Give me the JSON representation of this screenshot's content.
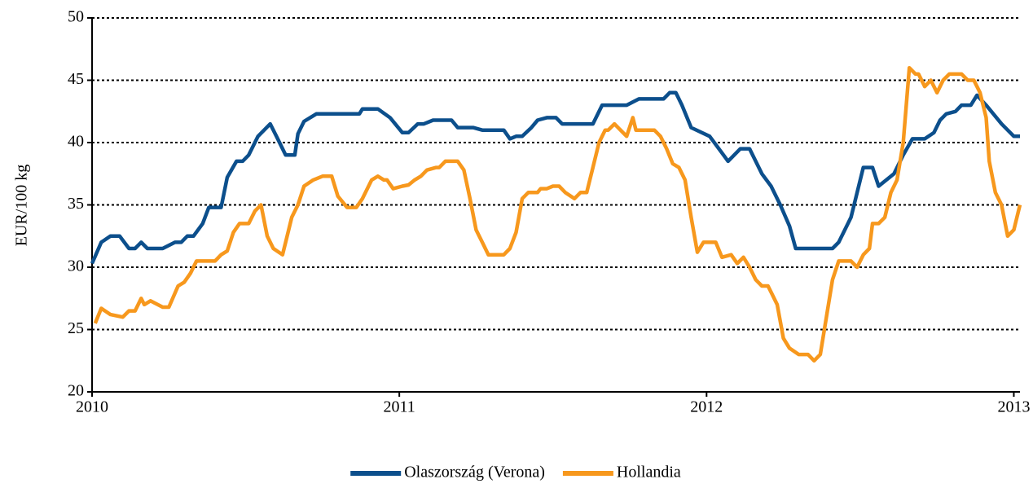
{
  "chart_data": {
    "type": "line",
    "ylabel": "EUR/100 kg",
    "xlim": [
      2010,
      2013.02
    ],
    "xticks": [
      2010,
      2011,
      2012,
      2013
    ],
    "ylim": [
      20,
      50
    ],
    "yticks": [
      20,
      25,
      30,
      35,
      40,
      45,
      50
    ],
    "grid": true,
    "legend": "bottom",
    "series": [
      {
        "name": "Olaszország (Verona)",
        "color": "#0c4f8c",
        "x": [
          2010.0,
          2010.03,
          2010.06,
          2010.09,
          2010.12,
          2010.14,
          2010.16,
          2010.18,
          2010.23,
          2010.27,
          2010.29,
          2010.31,
          2010.33,
          2010.36,
          2010.38,
          2010.42,
          2010.44,
          2010.47,
          2010.49,
          2010.51,
          2010.54,
          2010.58,
          2010.6,
          2010.63,
          2010.66,
          2010.67,
          2010.69,
          2010.73,
          2010.87,
          2010.88,
          2010.93,
          2010.97,
          2011.01,
          2011.03,
          2011.06,
          2011.08,
          2011.11,
          2011.17,
          2011.19,
          2011.24,
          2011.27,
          2011.34,
          2011.36,
          2011.38,
          2011.4,
          2011.43,
          2011.45,
          2011.48,
          2011.51,
          2011.53,
          2011.63,
          2011.66,
          2011.74,
          2011.78,
          2011.86,
          2011.88,
          2011.9,
          2011.92,
          2011.95,
          2012.01,
          2012.04,
          2012.07,
          2012.11,
          2012.14,
          2012.18,
          2012.21,
          2012.24,
          2012.27,
          2012.29,
          2012.41,
          2012.43,
          2012.47,
          2012.51,
          2012.54,
          2012.56,
          2012.61,
          2012.64,
          2012.67,
          2012.71,
          2012.74,
          2012.76,
          2012.78,
          2012.81,
          2012.83,
          2012.86,
          2012.88,
          2012.91,
          2012.96,
          2013.0,
          2013.02
        ],
        "values": [
          30.3,
          32,
          32.5,
          32.5,
          31.5,
          31.5,
          32,
          31.5,
          31.5,
          32,
          32,
          32.5,
          32.5,
          33.5,
          34.8,
          34.8,
          37.2,
          38.5,
          38.5,
          39,
          40.5,
          41.5,
          40.5,
          39,
          39,
          40.7,
          41.7,
          42.3,
          42.3,
          42.7,
          42.7,
          42,
          40.8,
          40.8,
          41.5,
          41.5,
          41.8,
          41.8,
          41.2,
          41.2,
          41,
          41,
          40.3,
          40.5,
          40.5,
          41.2,
          41.8,
          42,
          42,
          41.5,
          41.5,
          43,
          43,
          43.5,
          43.5,
          44,
          44,
          43,
          41.2,
          40.5,
          39.5,
          38.5,
          39.5,
          39.5,
          37.5,
          36.5,
          35,
          33.3,
          31.5,
          31.5,
          32,
          34,
          38,
          38,
          36.5,
          37.5,
          39,
          40.3,
          40.3,
          40.8,
          41.8,
          42.3,
          42.5,
          43,
          43,
          43.8,
          43,
          41.5,
          40.5,
          40.5
        ]
      },
      {
        "name": "Hollandia",
        "color": "#f7981d",
        "x": [
          2010.01,
          2010.03,
          2010.06,
          2010.1,
          2010.12,
          2010.14,
          2010.16,
          2010.17,
          2010.19,
          2010.23,
          2010.25,
          2010.28,
          2010.3,
          2010.32,
          2010.34,
          2010.4,
          2010.42,
          2010.44,
          2010.46,
          2010.48,
          2010.51,
          2010.53,
          2010.55,
          2010.57,
          2010.59,
          2010.62,
          2010.63,
          2010.65,
          2010.67,
          2010.69,
          2010.72,
          2010.75,
          2010.78,
          2010.8,
          2010.83,
          2010.86,
          2010.88,
          2010.91,
          2010.93,
          2010.95,
          2010.96,
          2010.98,
          2011.01,
          2011.03,
          2011.05,
          2011.07,
          2011.09,
          2011.12,
          2011.13,
          2011.15,
          2011.19,
          2011.21,
          2011.23,
          2011.25,
          2011.27,
          2011.29,
          2011.34,
          2011.36,
          2011.38,
          2011.4,
          2011.42,
          2011.45,
          2011.46,
          2011.48,
          2011.5,
          2011.52,
          2011.54,
          2011.57,
          2011.59,
          2011.61,
          2011.63,
          2011.65,
          2011.67,
          2011.68,
          2011.7,
          2011.74,
          2011.76,
          2011.77,
          2011.83,
          2011.85,
          2011.87,
          2011.89,
          2011.91,
          2011.93,
          2011.95,
          2011.97,
          2011.99,
          2012.03,
          2012.05,
          2012.08,
          2012.1,
          2012.12,
          2012.14,
          2012.16,
          2012.18,
          2012.2,
          2012.21,
          2012.23,
          2012.25,
          2012.27,
          2012.3,
          2012.33,
          2012.35,
          2012.37,
          2012.39,
          2012.41,
          2012.43,
          2012.47,
          2012.49,
          2012.51,
          2012.53,
          2012.54,
          2012.56,
          2012.58,
          2012.6,
          2012.62,
          2012.64,
          2012.66,
          2012.68,
          2012.69,
          2012.71,
          2012.73,
          2012.75,
          2012.77,
          2012.79,
          2012.83,
          2012.85,
          2012.87,
          2012.89,
          2012.91,
          2012.92,
          2012.94,
          2012.96,
          2012.98,
          2013.0,
          2013.02
        ],
        "values": [
          25.5,
          26.7,
          26.2,
          26,
          26.5,
          26.5,
          27.5,
          27,
          27.3,
          26.8,
          26.8,
          28.5,
          28.8,
          29.5,
          30.5,
          30.5,
          31,
          31.3,
          32.8,
          33.5,
          33.5,
          34.5,
          35,
          32.5,
          31.5,
          31,
          32,
          34,
          35,
          36.5,
          37,
          37.3,
          37.3,
          35.7,
          34.8,
          34.8,
          35.5,
          37,
          37.3,
          37,
          37,
          36.3,
          36.5,
          36.6,
          37,
          37.3,
          37.8,
          38,
          38,
          38.5,
          38.5,
          37.8,
          35.5,
          33,
          32,
          31,
          31,
          31.5,
          32.8,
          35.5,
          36,
          36,
          36.3,
          36.3,
          36.5,
          36.5,
          36,
          35.5,
          36,
          36,
          38,
          40,
          41,
          41,
          41.5,
          40.5,
          42,
          41,
          41,
          40.5,
          39.5,
          38.3,
          38,
          37,
          34,
          31.2,
          32,
          32,
          30.8,
          31,
          30.3,
          30.8,
          30,
          29,
          28.5,
          28.5,
          28,
          27,
          24.3,
          23.5,
          23,
          23,
          22.5,
          23,
          26,
          29,
          30.5,
          30.5,
          30,
          31,
          31.5,
          33.5,
          33.5,
          34,
          36,
          37,
          40,
          46,
          45.5,
          45.5,
          44.5,
          45,
          44,
          45,
          45.5,
          45.5,
          45,
          45,
          44,
          42,
          38.5,
          36,
          35,
          32.5,
          33,
          35
        ]
      }
    ]
  }
}
